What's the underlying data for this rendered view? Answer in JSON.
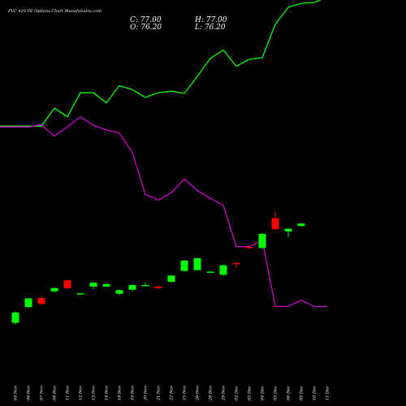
{
  "chart_data": {
    "type": "candlestick",
    "title": "PVC 420 PE Options Chart MunafaSutra.com",
    "ohlc": {
      "close_label": "C: 77.00",
      "high_label": "H: 77.00",
      "open_label": "O: 76.20",
      "low_label": "L: 76.20"
    },
    "colors": {
      "background": "#000000",
      "up": "#00ff00",
      "down": "#ff0000",
      "upper_line": "#00ff00",
      "lower_line": "#cc00cc",
      "text": "#ffffff"
    },
    "grid": false,
    "categories": [
      "04 Nov",
      "06 Nov",
      "07 Nov",
      "08 Nov",
      "11 Nov",
      "12 Nov",
      "13 Nov",
      "14 Nov",
      "18 Nov",
      "19 Nov",
      "20 Nov",
      "21 Nov",
      "22 Nov",
      "25 Nov",
      "26 Nov",
      "28 Nov",
      "29 Nov",
      "02 Dec",
      "03 Dec",
      "04 Dec",
      "05 Dec",
      "06 Dec",
      "09 Dec",
      "10 Dec",
      "11 Dec"
    ],
    "candles": [
      {
        "x": "04 Nov",
        "open": 18.0,
        "high": 32.5,
        "low": 16.0,
        "close": 31.0
      },
      {
        "x": "06 Nov",
        "open": 38.0,
        "high": 49.5,
        "low": 37.0,
        "close": 49.0
      },
      {
        "x": "07 Nov",
        "open": 49.5,
        "high": 52.0,
        "low": 41.0,
        "close": 42.0
      },
      {
        "x": "08 Nov",
        "open": 58.0,
        "high": 63.0,
        "low": 56.5,
        "close": 62.0
      },
      {
        "x": "11 Nov",
        "open": 72.0,
        "high": 72.5,
        "low": 61.0,
        "close": 62.0
      },
      {
        "x": "12 Nov",
        "open": 55.5,
        "high": 56.0,
        "low": 54.5,
        "close": 55.5
      },
      {
        "x": "13 Nov",
        "open": 64.0,
        "high": 70.5,
        "low": 61.0,
        "close": 69.0
      },
      {
        "x": "14 Nov",
        "open": 64.0,
        "high": 68.0,
        "low": 63.0,
        "close": 67.0
      },
      {
        "x": "18 Nov",
        "open": 55.0,
        "high": 60.5,
        "low": 53.5,
        "close": 59.5
      },
      {
        "x": "19 Nov",
        "open": 60.0,
        "high": 67.0,
        "low": 58.5,
        "close": 66.0
      },
      {
        "x": "20 Nov",
        "open": 66.0,
        "high": 69.0,
        "low": 64.5,
        "close": 66.0
      },
      {
        "x": "21 Nov",
        "open": 64.0,
        "high": 66.0,
        "low": 61.0,
        "close": 62.0
      },
      {
        "x": "22 Nov",
        "open": 70.0,
        "high": 79.0,
        "low": 69.0,
        "close": 78.0
      },
      {
        "x": "25 Nov",
        "open": 84.0,
        "high": 98.0,
        "low": 83.0,
        "close": 97.0
      },
      {
        "x": "26 Nov",
        "open": 85.0,
        "high": 100.5,
        "low": 84.0,
        "close": 100.0
      },
      {
        "x": "28 Nov",
        "open": 83.0,
        "high": 84.0,
        "low": 82.0,
        "close": 83.0
      },
      {
        "x": "29 Nov",
        "open": 79.0,
        "high": 92.0,
        "low": 78.0,
        "close": 91.0
      },
      {
        "x": "02 Dec",
        "open": 94.0,
        "high": 95.5,
        "low": 88.0,
        "close": 92.5
      },
      {
        "x": "03 Dec",
        "open": 114.5,
        "high": 115.0,
        "low": 111.5,
        "close": 113.0
      },
      {
        "x": "04 Dec",
        "open": 113.0,
        "high": 132.0,
        "low": 112.5,
        "close": 131.0
      },
      {
        "x": "05 Dec",
        "open": 151.0,
        "high": 160.0,
        "low": 136.0,
        "close": 137.0
      },
      {
        "x": "06 Dec",
        "open": 134.0,
        "high": 138.0,
        "low": 127.0,
        "close": 137.5
      },
      {
        "x": "09 Dec",
        "open": 141.0,
        "high": 145.0,
        "low": 140.0,
        "close": 144.0
      },
      {
        "x": "10 Dec",
        "open": null,
        "high": null,
        "low": null,
        "close": null
      },
      {
        "x": "11 Dec",
        "open": null,
        "high": null,
        "low": null,
        "close": null
      }
    ],
    "upper_line": [
      264,
      264,
      264,
      287,
      276,
      307,
      307,
      294,
      316,
      311,
      301,
      307,
      309,
      306,
      328,
      351,
      362,
      341,
      350,
      352,
      395,
      417,
      422,
      423,
      430
    ],
    "lower_line": [
      263,
      263,
      266,
      251,
      263,
      276,
      265,
      259,
      255,
      230,
      176,
      169,
      178,
      196,
      181,
      171,
      162,
      109,
      109,
      117,
      32,
      32,
      40,
      32,
      32
    ],
    "ylim": [
      0,
      520
    ],
    "candle_ylim": [
      0,
      180
    ]
  }
}
